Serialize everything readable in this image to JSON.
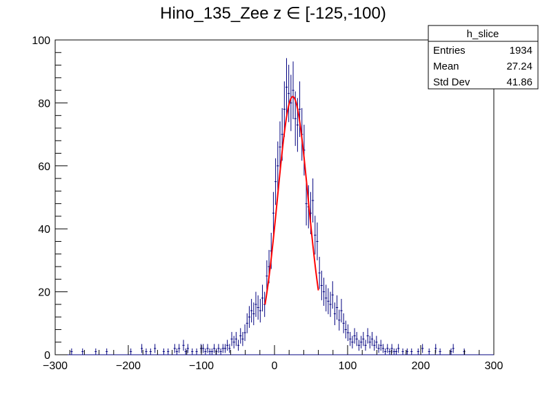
{
  "chart_data": {
    "type": "histogram",
    "title": "Hino_135_Zee z  ∈ [-125,-100)",
    "xlabel": "",
    "ylabel": "",
    "xlim": [
      -300,
      300
    ],
    "ylim": [
      0,
      100
    ],
    "x_ticks": [
      -300,
      -200,
      -100,
      0,
      100,
      200,
      300
    ],
    "y_ticks": [
      0,
      20,
      40,
      60,
      80,
      100
    ],
    "x_tick_labels": [
      "−300",
      "−200",
      "−100",
      "0",
      "100",
      "200",
      "300"
    ],
    "y_tick_labels": [
      "0",
      "20",
      "40",
      "60",
      "80",
      "100"
    ],
    "bin_width": 3,
    "histogram_color": "#00007f",
    "fit_color": "#ff0000",
    "bins": [
      {
        "x": -277.5,
        "y": 1
      },
      {
        "x": -262.5,
        "y": 1
      },
      {
        "x": -244.5,
        "y": 1
      },
      {
        "x": -229.5,
        "y": 1
      },
      {
        "x": -196.5,
        "y": 1
      },
      {
        "x": -181.5,
        "y": 2
      },
      {
        "x": -175.5,
        "y": 1
      },
      {
        "x": -169.5,
        "y": 1
      },
      {
        "x": -163.5,
        "y": 2
      },
      {
        "x": -151.5,
        "y": 1
      },
      {
        "x": -145.5,
        "y": 1
      },
      {
        "x": -136.5,
        "y": 2
      },
      {
        "x": -133.5,
        "y": 1
      },
      {
        "x": -130.5,
        "y": 2
      },
      {
        "x": -124.5,
        "y": 3
      },
      {
        "x": -121.5,
        "y": 1
      },
      {
        "x": -118.5,
        "y": 2
      },
      {
        "x": -112.5,
        "y": 1
      },
      {
        "x": -106.5,
        "y": 1
      },
      {
        "x": -100.5,
        "y": 2
      },
      {
        "x": -97.5,
        "y": 2
      },
      {
        "x": -94.5,
        "y": 1
      },
      {
        "x": -91.5,
        "y": 2
      },
      {
        "x": -88.5,
        "y": 1
      },
      {
        "x": -85.5,
        "y": 1
      },
      {
        "x": -82.5,
        "y": 2
      },
      {
        "x": -79.5,
        "y": 1
      },
      {
        "x": -76.5,
        "y": 2
      },
      {
        "x": -73.5,
        "y": 1
      },
      {
        "x": -70.5,
        "y": 2
      },
      {
        "x": -67.5,
        "y": 2
      },
      {
        "x": -64.5,
        "y": 3
      },
      {
        "x": -61.5,
        "y": 2
      },
      {
        "x": -58.5,
        "y": 5
      },
      {
        "x": -55.5,
        "y": 4
      },
      {
        "x": -52.5,
        "y": 5
      },
      {
        "x": -49.5,
        "y": 3
      },
      {
        "x": -46.5,
        "y": 6
      },
      {
        "x": -43.5,
        "y": 5
      },
      {
        "x": -40.5,
        "y": 7
      },
      {
        "x": -37.5,
        "y": 10
      },
      {
        "x": -34.5,
        "y": 12
      },
      {
        "x": -31.5,
        "y": 14
      },
      {
        "x": -28.5,
        "y": 13
      },
      {
        "x": -25.5,
        "y": 16
      },
      {
        "x": -22.5,
        "y": 15
      },
      {
        "x": -19.5,
        "y": 14
      },
      {
        "x": -16.5,
        "y": 18
      },
      {
        "x": -13.5,
        "y": 16
      },
      {
        "x": -10.5,
        "y": 25
      },
      {
        "x": -7.5,
        "y": 28
      },
      {
        "x": -4.5,
        "y": 33
      },
      {
        "x": -1.5,
        "y": 45
      },
      {
        "x": 1.5,
        "y": 55
      },
      {
        "x": 4.5,
        "y": 60
      },
      {
        "x": 7.5,
        "y": 66
      },
      {
        "x": 10.5,
        "y": 70
      },
      {
        "x": 13.5,
        "y": 78
      },
      {
        "x": 16.5,
        "y": 85
      },
      {
        "x": 19.5,
        "y": 83
      },
      {
        "x": 22.5,
        "y": 80
      },
      {
        "x": 25.5,
        "y": 84
      },
      {
        "x": 28.5,
        "y": 75
      },
      {
        "x": 31.5,
        "y": 73
      },
      {
        "x": 34.5,
        "y": 78
      },
      {
        "x": 37.5,
        "y": 70
      },
      {
        "x": 40.5,
        "y": 65
      },
      {
        "x": 43.5,
        "y": 48
      },
      {
        "x": 46.5,
        "y": 47
      },
      {
        "x": 49.5,
        "y": 45
      },
      {
        "x": 52.5,
        "y": 49
      },
      {
        "x": 55.5,
        "y": 38
      },
      {
        "x": 58.5,
        "y": 36
      },
      {
        "x": 61.5,
        "y": 26
      },
      {
        "x": 64.5,
        "y": 22
      },
      {
        "x": 67.5,
        "y": 20
      },
      {
        "x": 70.5,
        "y": 18
      },
      {
        "x": 73.5,
        "y": 17
      },
      {
        "x": 76.5,
        "y": 16
      },
      {
        "x": 79.5,
        "y": 19
      },
      {
        "x": 82.5,
        "y": 13
      },
      {
        "x": 85.5,
        "y": 15
      },
      {
        "x": 88.5,
        "y": 11
      },
      {
        "x": 91.5,
        "y": 14
      },
      {
        "x": 94.5,
        "y": 10
      },
      {
        "x": 97.5,
        "y": 8
      },
      {
        "x": 100.5,
        "y": 7
      },
      {
        "x": 103.5,
        "y": 5
      },
      {
        "x": 106.5,
        "y": 4
      },
      {
        "x": 109.5,
        "y": 6
      },
      {
        "x": 112.5,
        "y": 5
      },
      {
        "x": 115.5,
        "y": 3
      },
      {
        "x": 118.5,
        "y": 4
      },
      {
        "x": 121.5,
        "y": 5
      },
      {
        "x": 124.5,
        "y": 3
      },
      {
        "x": 127.5,
        "y": 6
      },
      {
        "x": 130.5,
        "y": 4
      },
      {
        "x": 133.5,
        "y": 5
      },
      {
        "x": 136.5,
        "y": 3
      },
      {
        "x": 139.5,
        "y": 4
      },
      {
        "x": 142.5,
        "y": 2
      },
      {
        "x": 145.5,
        "y": 3
      },
      {
        "x": 148.5,
        "y": 2
      },
      {
        "x": 151.5,
        "y": 1
      },
      {
        "x": 154.5,
        "y": 2
      },
      {
        "x": 157.5,
        "y": 1
      },
      {
        "x": 160.5,
        "y": 2
      },
      {
        "x": 163.5,
        "y": 1
      },
      {
        "x": 166.5,
        "y": 1
      },
      {
        "x": 169.5,
        "y": 2
      },
      {
        "x": 175.5,
        "y": 1
      },
      {
        "x": 181.5,
        "y": 1
      },
      {
        "x": 187.5,
        "y": 1
      },
      {
        "x": 196.5,
        "y": 1
      },
      {
        "x": 202.5,
        "y": 2
      },
      {
        "x": 211.5,
        "y": 1
      },
      {
        "x": 220.5,
        "y": 2
      },
      {
        "x": 226.5,
        "y": 1
      },
      {
        "x": 241.5,
        "y": 1
      },
      {
        "x": 244.5,
        "y": 2
      },
      {
        "x": 259.5,
        "y": 1
      }
    ],
    "fit": {
      "function": "gaus",
      "amplitude": 82,
      "mean": 25,
      "sigma": 21,
      "range": [
        -13,
        60
      ]
    }
  },
  "stats": {
    "title": "h_slice",
    "rows": [
      {
        "label": "Entries",
        "value": "1934"
      },
      {
        "label": "Mean",
        "value": "27.24"
      },
      {
        "label": "Std Dev",
        "value": "41.86"
      }
    ]
  }
}
